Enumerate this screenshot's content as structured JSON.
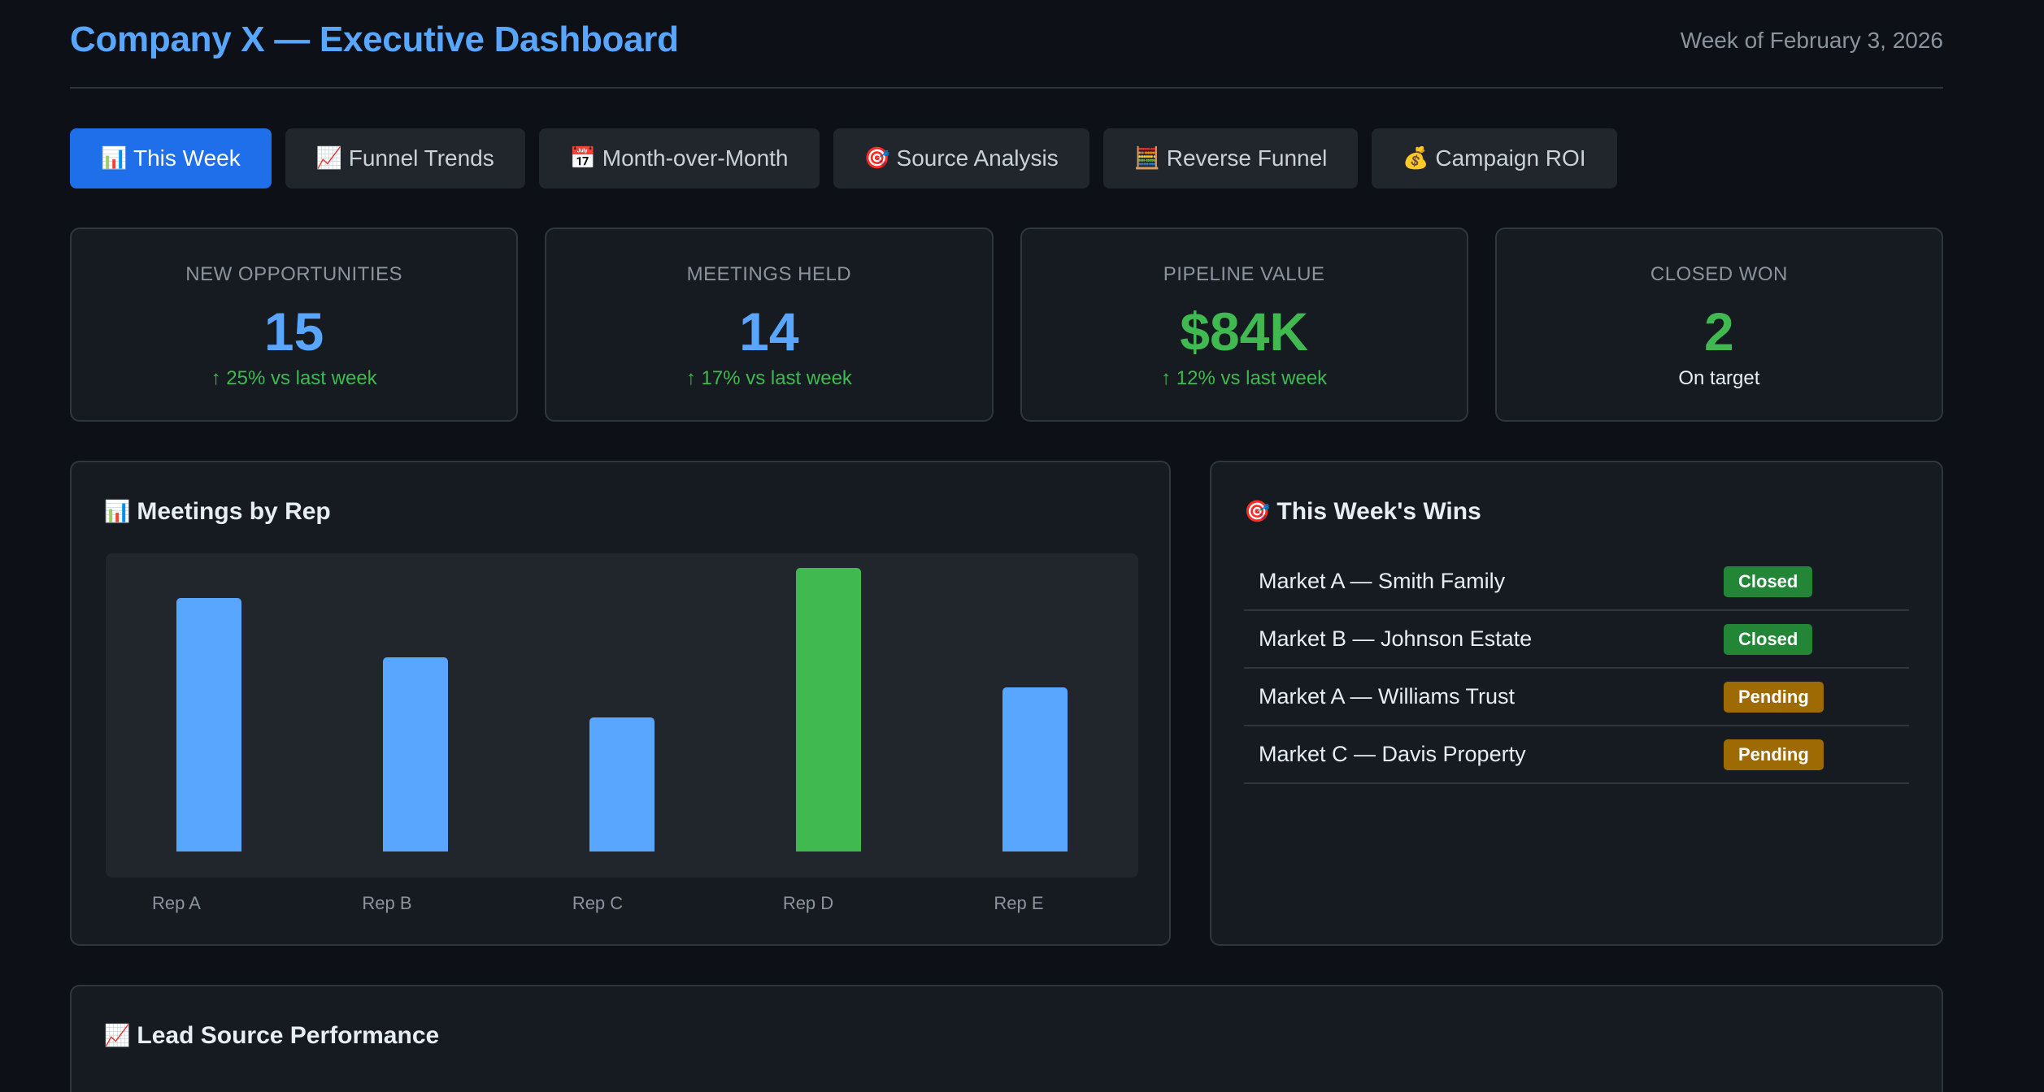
{
  "header": {
    "title": "Company X — Executive Dashboard",
    "week": "Week of February 3, 2026"
  },
  "tabs": [
    {
      "icon": "📊",
      "icon_name": "bar-chart-icon",
      "label": "This Week",
      "active": true
    },
    {
      "icon": "📈",
      "icon_name": "trend-chart-icon",
      "label": "Funnel Trends",
      "active": false
    },
    {
      "icon": "📅",
      "icon_name": "calendar-icon",
      "label": "Month-over-Month",
      "active": false
    },
    {
      "icon": "🎯",
      "icon_name": "target-icon",
      "label": "Source Analysis",
      "active": false
    },
    {
      "icon": "🧮",
      "icon_name": "abacus-icon",
      "label": "Reverse Funnel",
      "active": false
    },
    {
      "icon": "💰",
      "icon_name": "money-bag-icon",
      "label": "Campaign ROI",
      "active": false
    }
  ],
  "kpis": [
    {
      "label": "NEW OPPORTUNITIES",
      "value": "15",
      "sub": "↑ 25% vs last week"
    },
    {
      "label": "MEETINGS HELD",
      "value": "14",
      "sub": "↑ 17% vs last week"
    },
    {
      "label": "PIPELINE VALUE",
      "value": "$84K",
      "sub": "↑ 12% vs last week"
    },
    {
      "label": "CLOSED WON",
      "value": "2",
      "sub": "On target"
    }
  ],
  "meetings_panel": {
    "icon": "📊",
    "title": "Meetings by Rep"
  },
  "chart_data": {
    "type": "bar",
    "categories": [
      "Rep A",
      "Rep B",
      "Rep C",
      "Rep D",
      "Rep E"
    ],
    "values": [
      4.25,
      3.25,
      2.25,
      4.75,
      2.75
    ],
    "ylim": [
      0,
      5
    ],
    "colors": [
      "#58a6ff",
      "#58a6ff",
      "#58a6ff",
      "#3fb950",
      "#58a6ff"
    ],
    "grid": false
  },
  "wins_panel": {
    "icon": "🎯",
    "title": "This Week's Wins",
    "items": [
      {
        "name": "Market A — Smith Family",
        "status": "Closed"
      },
      {
        "name": "Market B — Johnson Estate",
        "status": "Closed"
      },
      {
        "name": "Market A — Williams Trust",
        "status": "Pending"
      },
      {
        "name": "Market C — Davis Property",
        "status": "Pending"
      }
    ]
  },
  "lead_panel": {
    "icon": "📈",
    "title": "Lead Source Performance"
  },
  "colors": {
    "accent": "#58a6ff",
    "active_tab": "#1f6feb",
    "positive": "#3fb950",
    "closed_badge": "#238636",
    "pending_badge": "#9e6a03",
    "background": "#0d1117",
    "card": "#161b22"
  }
}
